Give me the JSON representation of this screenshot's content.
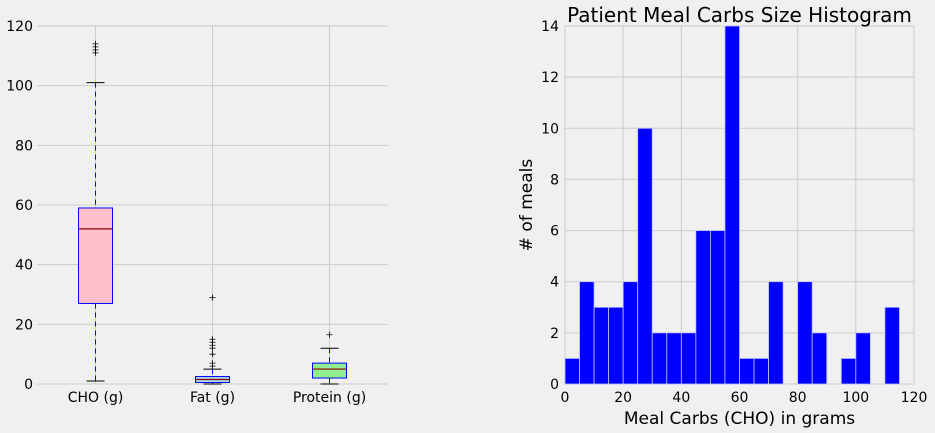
{
  "chart_data": [
    {
      "type": "box",
      "title": "",
      "categories": [
        "CHO (g)",
        "Fat (g)",
        "Protein (g)"
      ],
      "ylim": [
        0,
        120
      ],
      "yticks": [
        0,
        20,
        40,
        60,
        80,
        100,
        120
      ],
      "grid": true,
      "boxes": [
        {
          "name": "CHO (g)",
          "whisker_low": 1,
          "q1": 27,
          "median": 52,
          "q3": 59,
          "whisker_high": 101,
          "outliers": [
            111,
            112,
            113,
            114
          ],
          "fill": "#ffc0cb"
        },
        {
          "name": "Fat (g)",
          "whisker_low": 0,
          "q1": 0.5,
          "median": 1.5,
          "q3": 2.5,
          "whisker_high": 5,
          "outliers": [
            6,
            7,
            10,
            12,
            13,
            14,
            15,
            29
          ],
          "fill": "#add8e6"
        },
        {
          "name": "Protein (g)",
          "whisker_low": 0,
          "q1": 2,
          "median": 5,
          "q3": 7,
          "whisker_high": 12,
          "outliers": [
            16.5
          ],
          "fill": "#90ee90"
        }
      ],
      "colors": {
        "box_edge": "#0000ff",
        "median": "#8b0000",
        "whisker": "#0000ff",
        "grid": "#cbcbcb"
      }
    },
    {
      "type": "bar",
      "title": "Patient Meal Carbs Size Histogram",
      "xlabel": "Meal Carbs (CHO) in grams",
      "ylabel": "# of meals",
      "xlim": [
        0,
        120
      ],
      "ylim": [
        0,
        14
      ],
      "xticks": [
        0,
        20,
        40,
        60,
        80,
        100,
        120
      ],
      "yticks": [
        0,
        2,
        4,
        6,
        8,
        10,
        12,
        14
      ],
      "bin_width": 5,
      "bins": [
        {
          "x": 0,
          "count": 1
        },
        {
          "x": 5,
          "count": 4
        },
        {
          "x": 10,
          "count": 3
        },
        {
          "x": 15,
          "count": 3
        },
        {
          "x": 20,
          "count": 4
        },
        {
          "x": 25,
          "count": 10
        },
        {
          "x": 30,
          "count": 2
        },
        {
          "x": 35,
          "count": 2
        },
        {
          "x": 40,
          "count": 2
        },
        {
          "x": 45,
          "count": 6
        },
        {
          "x": 50,
          "count": 6
        },
        {
          "x": 55,
          "count": 14
        },
        {
          "x": 60,
          "count": 1
        },
        {
          "x": 65,
          "count": 1
        },
        {
          "x": 70,
          "count": 4
        },
        {
          "x": 75,
          "count": 0
        },
        {
          "x": 80,
          "count": 4
        },
        {
          "x": 85,
          "count": 2
        },
        {
          "x": 90,
          "count": 0
        },
        {
          "x": 95,
          "count": 1
        },
        {
          "x": 100,
          "count": 2
        },
        {
          "x": 105,
          "count": 0
        },
        {
          "x": 110,
          "count": 3
        }
      ],
      "grid": true,
      "colors": {
        "bar": "#0000ff",
        "bar_edge": "#bfbfff",
        "grid": "#cbcbcb"
      }
    }
  ]
}
